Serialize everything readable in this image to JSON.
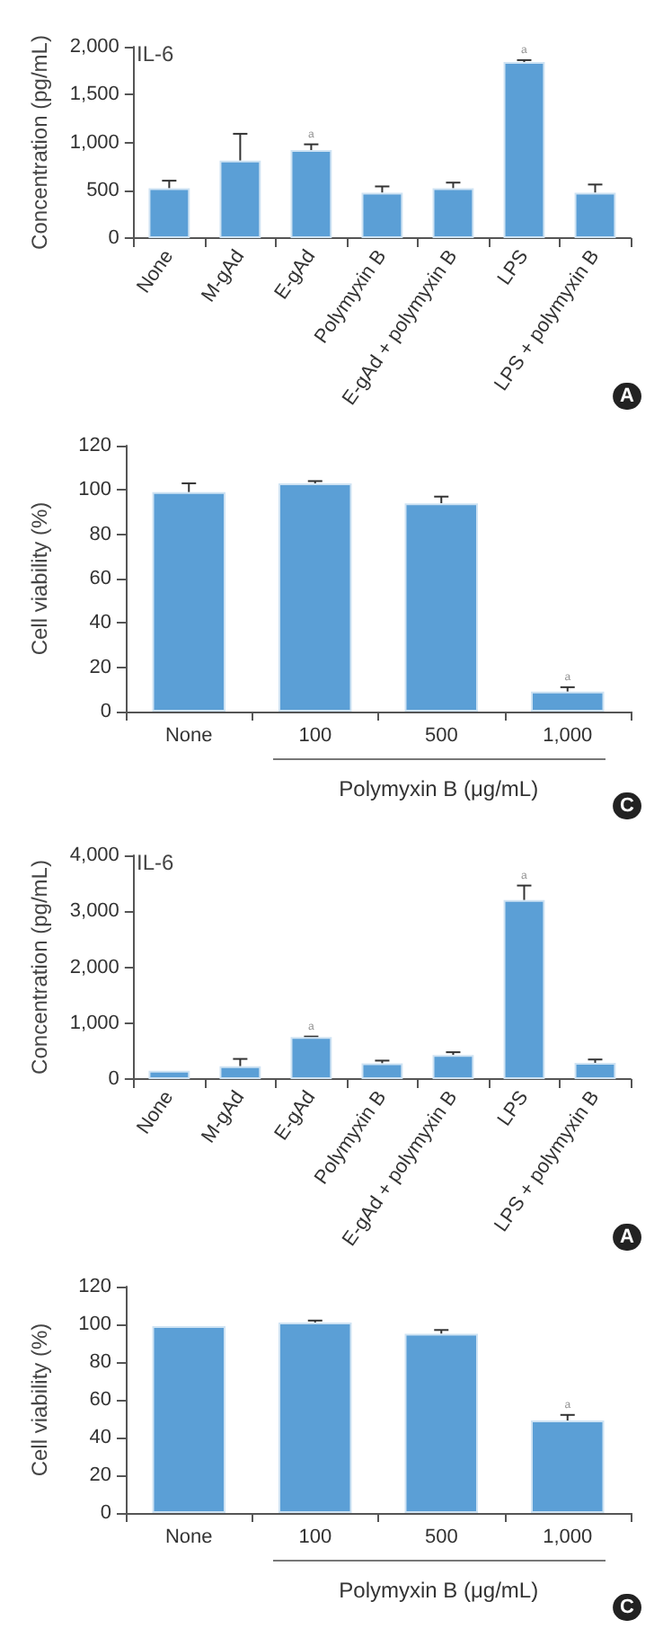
{
  "chart_data": [
    {
      "type": "bar",
      "title": "IL-6",
      "ylabel": "Concentration (pg/mL)",
      "categories": [
        "None",
        "M-gAd",
        "E-gAd",
        "Polymyxin B",
        "E-gAd + polymyxin B",
        "LPS",
        "LPS + polymyxin B"
      ],
      "values": [
        520,
        810,
        920,
        475,
        520,
        1840,
        475
      ],
      "errors": [
        [
          520,
          600
        ],
        [
          810,
          1090
        ],
        [
          920,
          980
        ],
        [
          475,
          540
        ],
        [
          520,
          580
        ],
        [
          1840,
          1860
        ],
        [
          475,
          560
        ]
      ],
      "color": "#5b9fd6",
      "ylim": [
        0,
        2000
      ],
      "yticks": [
        0,
        {
          "value": 500,
          "label": "500"
        },
        {
          "value": 1000,
          "label": "1,000"
        },
        {
          "value": 1500,
          "label": "1,500"
        },
        {
          "value": 2000,
          "label": "2,000"
        }
      ],
      "grid": false,
      "annotations": [
        {
          "text": "a",
          "x": "E-gAd",
          "y": 980
        },
        {
          "text": "a",
          "x": "LPS",
          "y": 1860
        },
        "A"
      ]
    },
    {
      "type": "bar",
      "ylabel": "Cell viability (%)",
      "xlabel": "Polymyxin B (μg/mL)",
      "categories": [
        "None",
        "100",
        "500",
        "1,000"
      ],
      "values": [
        99,
        103,
        94,
        9
      ],
      "errors": [
        [
          99,
          103
        ],
        [
          103,
          104
        ],
        [
          94,
          97
        ],
        [
          9,
          11
        ]
      ],
      "color": "#5b9fd6",
      "ylim": [
        0,
        120
      ],
      "yticks": [
        0,
        20,
        40,
        60,
        80,
        100,
        120
      ],
      "grid": false,
      "annotations": [
        {
          "text": "a",
          "x": "1,000",
          "y": 11
        },
        "C"
      ]
    },
    {
      "type": "bar",
      "title": "IL-6",
      "ylabel": "Concentration (pg/mL)",
      "categories": [
        "None",
        "M-gAd",
        "E-gAd",
        "Polymyxin B",
        "E-gAd + polymyxin B",
        "LPS",
        "LPS + polymyxin B"
      ],
      "values": [
        150,
        230,
        750,
        280,
        430,
        3200,
        290
      ],
      "errors": [
        null,
        [
          230,
          360
        ],
        [
          750,
          760
        ],
        [
          280,
          330
        ],
        [
          430,
          480
        ],
        [
          3200,
          3460
        ],
        [
          290,
          350
        ]
      ],
      "color": "#5b9fd6",
      "ylim": [
        0,
        4000
      ],
      "yticks": [
        0,
        {
          "value": 1000,
          "label": "1,000"
        },
        {
          "value": 2000,
          "label": "2,000"
        },
        {
          "value": 3000,
          "label": "3,000"
        },
        {
          "value": 4000,
          "label": "4,000"
        }
      ],
      "grid": false,
      "annotations": [
        {
          "text": "a",
          "x": "E-gAd",
          "y": 760
        },
        {
          "text": "a",
          "x": "LPS",
          "y": 3460
        },
        "A"
      ]
    },
    {
      "type": "bar",
      "ylabel": "Cell viability (%)",
      "xlabel": "Polymyxin B (μg/mL)",
      "categories": [
        "None",
        "100",
        "500",
        "1,000"
      ],
      "values": [
        99,
        101,
        95,
        49
      ],
      "errors": [
        null,
        [
          101,
          102
        ],
        [
          95,
          97
        ],
        [
          49,
          52
        ]
      ],
      "color": "#5b9fd6",
      "ylim": [
        0,
        120
      ],
      "yticks": [
        0,
        20,
        40,
        60,
        80,
        100,
        120
      ],
      "grid": false,
      "annotations": [
        {
          "text": "a",
          "x": "1,000",
          "y": 52
        },
        "C"
      ]
    }
  ]
}
